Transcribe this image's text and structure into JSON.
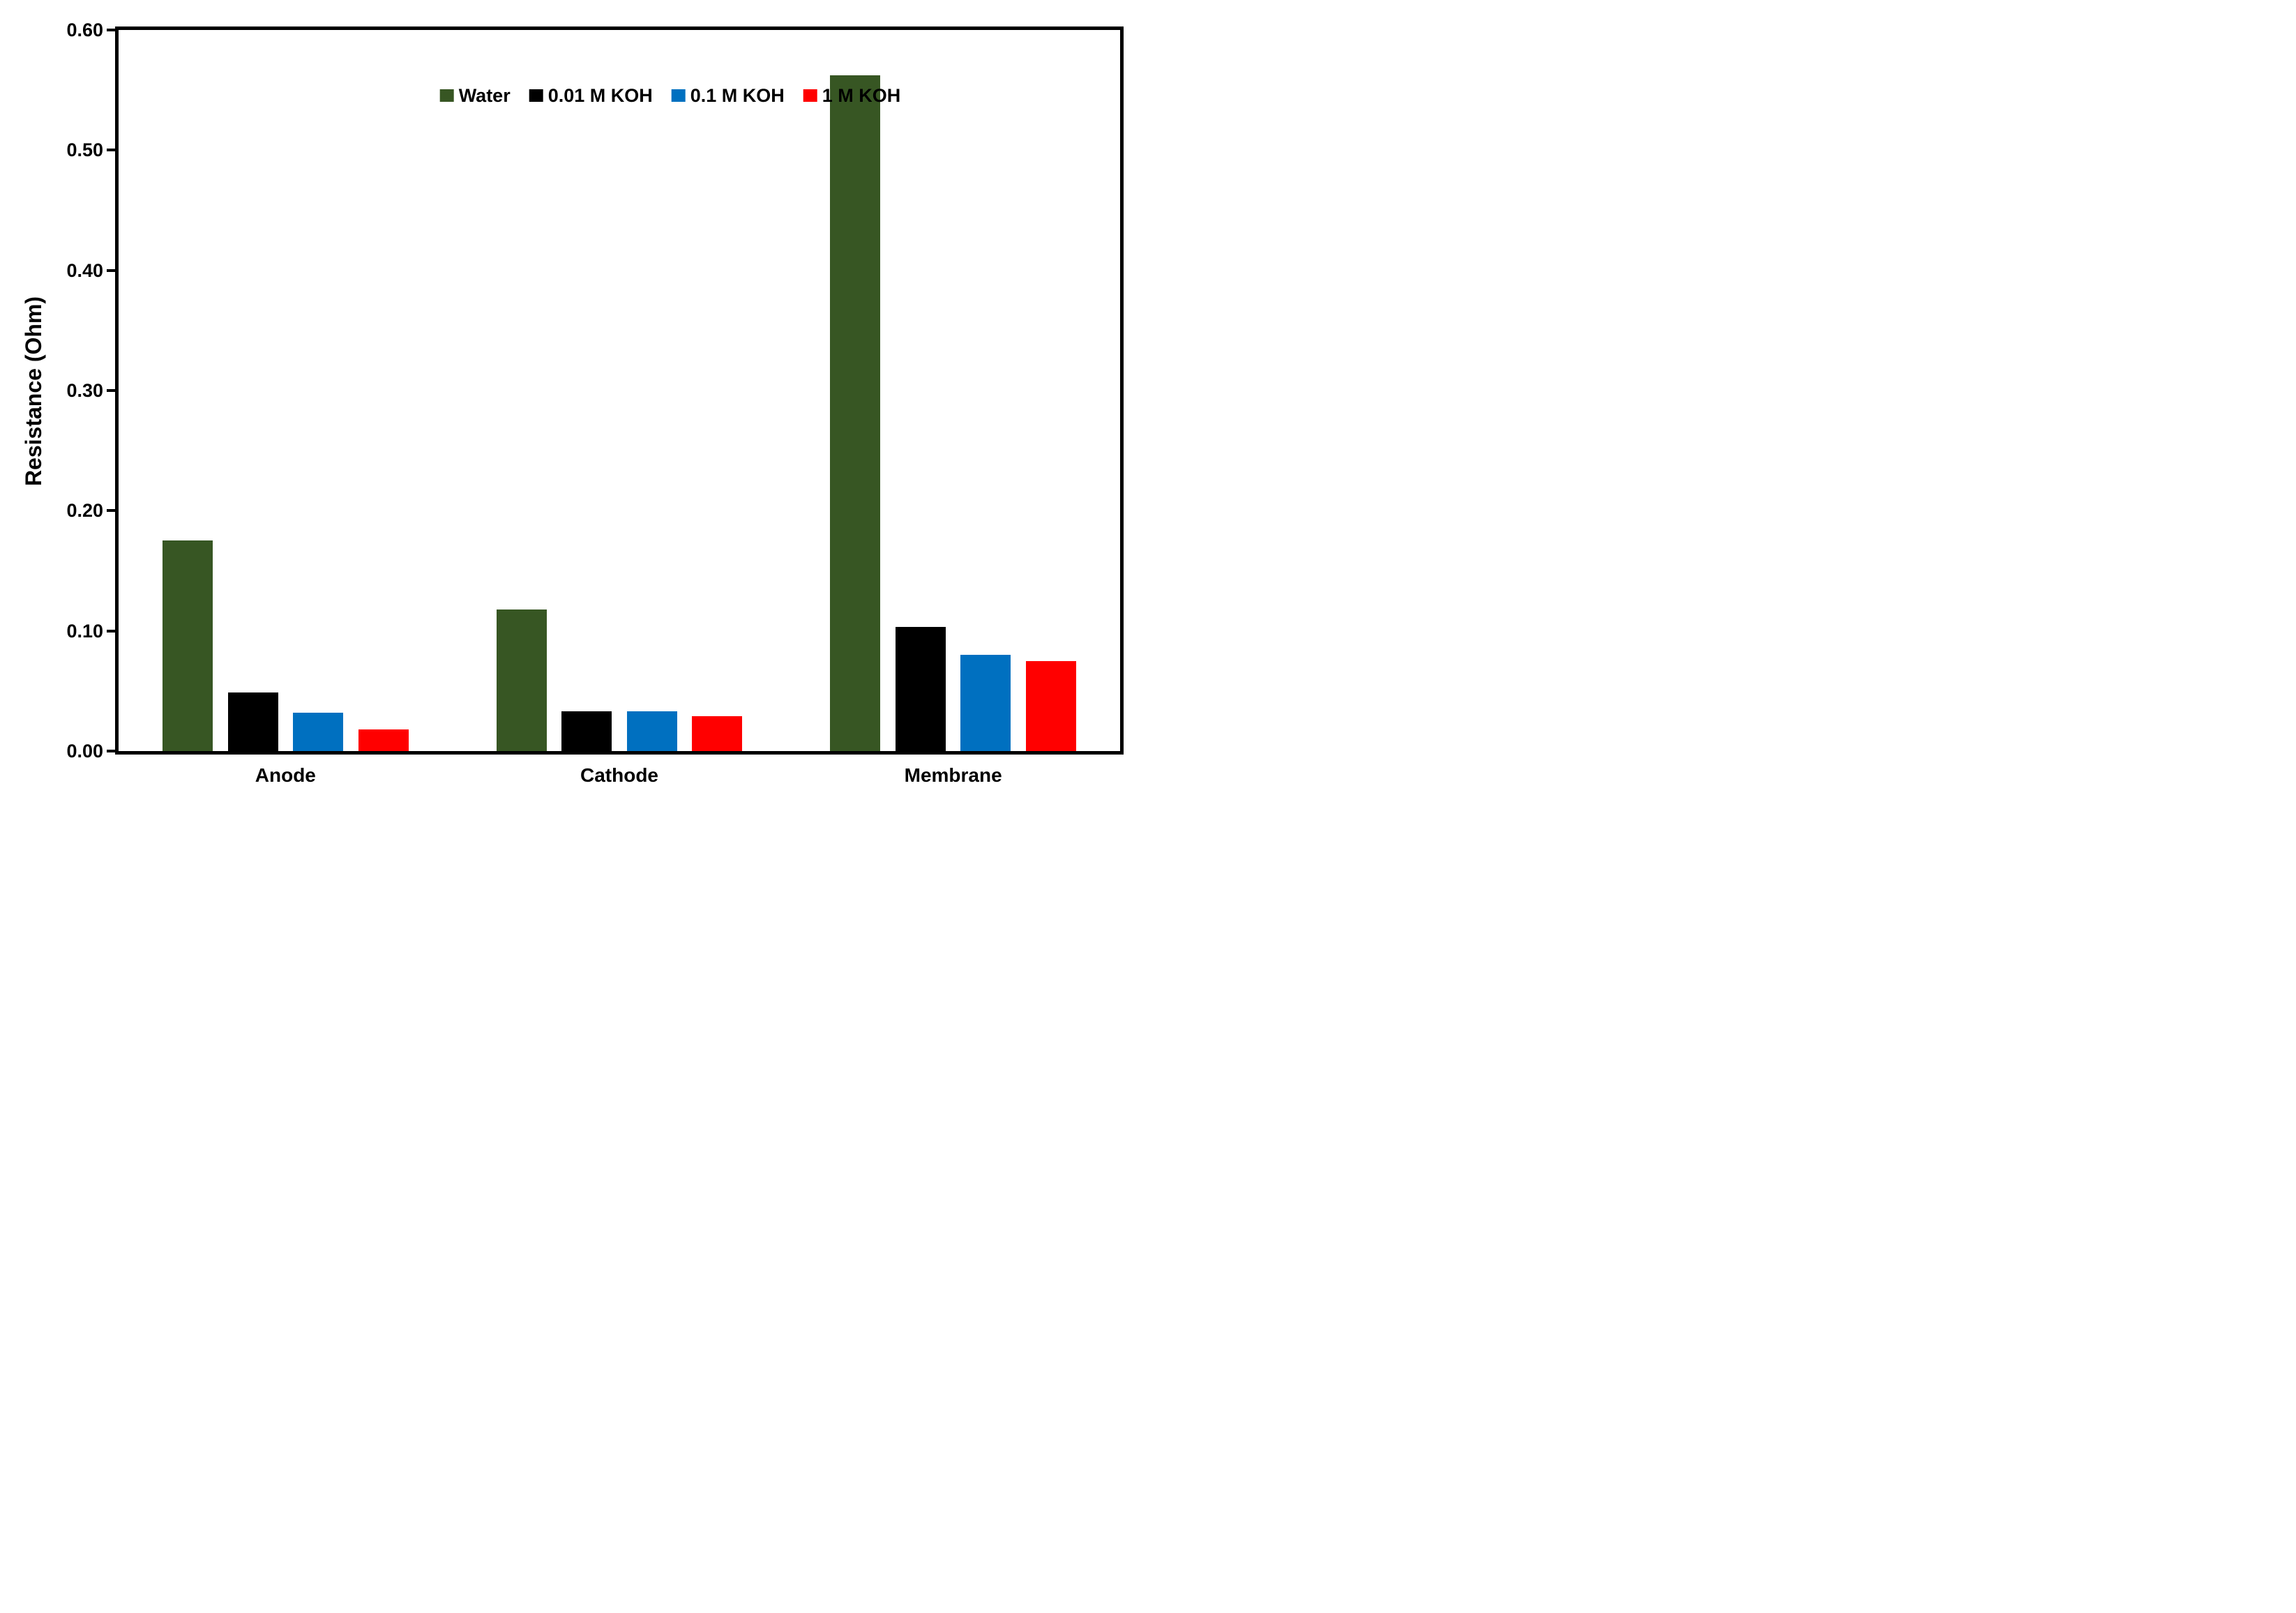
{
  "chart_data": {
    "type": "bar",
    "title": "",
    "xlabel": "",
    "ylabel": "Resistance (Ohm)",
    "categories": [
      "Anode",
      "Cathode",
      "Membrane"
    ],
    "series": [
      {
        "name": "Water",
        "color": "#375623",
        "values": [
          0.175,
          0.118,
          0.562
        ]
      },
      {
        "name": "0.01 M KOH",
        "color": "#000000",
        "values": [
          0.049,
          0.033,
          0.103
        ]
      },
      {
        "name": "0.1 M KOH",
        "color": "#0070C0",
        "values": [
          0.032,
          0.033,
          0.08
        ]
      },
      {
        "name": "1 M KOH",
        "color": "#FF0000",
        "values": [
          0.018,
          0.029,
          0.075
        ]
      }
    ],
    "ylim": [
      0.0,
      0.6
    ],
    "ytick_step": 0.1,
    "ytick_labels": [
      "0.00",
      "0.10",
      "0.20",
      "0.30",
      "0.40",
      "0.50",
      "0.60"
    ],
    "grid": false,
    "legend_position": "top-center-inside",
    "axis_color": "#000000",
    "background_color": "#FFFFFF"
  }
}
